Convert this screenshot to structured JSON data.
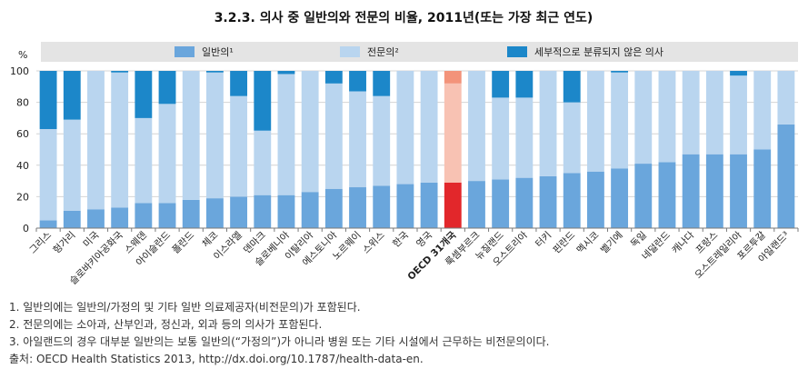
{
  "chart_data": {
    "type": "bar",
    "stacked": true,
    "title": "3.2.3. 의사 중 일반의와 전문의 비율, 2011년(또는 가장 최근 연도)",
    "ylabel": "%",
    "xlabel": "",
    "ylim": [
      0,
      100
    ],
    "yticks": [
      0,
      20,
      40,
      60,
      80,
      100
    ],
    "grid": true,
    "legend": "top",
    "highlight": "OECD 31개국",
    "categories": [
      "그리스",
      "헝가리",
      "미국",
      "슬로바키아공화국",
      "스웨덴",
      "아이슬란드",
      "폴란드",
      "체코",
      "이스라엘",
      "덴마크",
      "슬로베니아",
      "이탈리아",
      "에스토니아",
      "노르웨이",
      "스위스",
      "한국",
      "영국",
      "OECD 31개국",
      "룩셈부르크",
      "뉴질랜드",
      "오스트리아",
      "터키",
      "핀란드",
      "멕시코",
      "벨기에",
      "독일",
      "네덜란드",
      "캐나다",
      "프랑스",
      "오스트레일리아",
      "포르투갈",
      "아일랜드³"
    ],
    "series": [
      {
        "name": "일반의¹",
        "color": "#6aa6dc",
        "highlight_color": "#e2272b",
        "values": [
          5,
          11,
          12,
          13,
          16,
          16,
          18,
          19,
          20,
          21,
          21,
          23,
          25,
          26,
          27,
          28,
          29,
          29,
          30,
          31,
          32,
          33,
          35,
          36,
          38,
          41,
          42,
          47,
          47,
          47,
          50,
          66
        ]
      },
      {
        "name": "전문의²",
        "color": "#b9d5ef",
        "highlight_color": "#f8c2b3",
        "values": [
          58,
          58,
          88,
          86,
          54,
          63,
          82,
          80,
          64,
          41,
          77,
          77,
          67,
          61,
          57,
          72,
          71,
          63,
          70,
          52,
          51,
          67,
          45,
          64,
          61,
          59,
          58,
          53,
          53,
          50,
          50,
          34
        ]
      },
      {
        "name": "세부적으로 분류되지 않은 의사",
        "color": "#1c87c9",
        "highlight_color": "#f3937a",
        "values": [
          37,
          31,
          0,
          1,
          30,
          21,
          0,
          1,
          16,
          38,
          2,
          0,
          8,
          13,
          16,
          0,
          0,
          8,
          0,
          17,
          17,
          0,
          20,
          0,
          1,
          0,
          0,
          0,
          0,
          3,
          0,
          0
        ]
      }
    ]
  },
  "notes": [
    "1. 일반의에는 일반의/가정의 및 기타 일반 의료제공자(비전문의)가 포함된다.",
    "2. 전문의에는 소아과, 산부인과, 정신과, 외과 등의 의사가 포함된다.",
    "3. 아일랜드의 경우 대부분 일반의는 보통 일반의(“가정의”)가 아니라 병원 또는 기타 시설에서 근무하는 비전문의이다.",
    "출처: OECD Health Statistics 2013, http://dx.doi.org/10.1787/health-data-en."
  ]
}
